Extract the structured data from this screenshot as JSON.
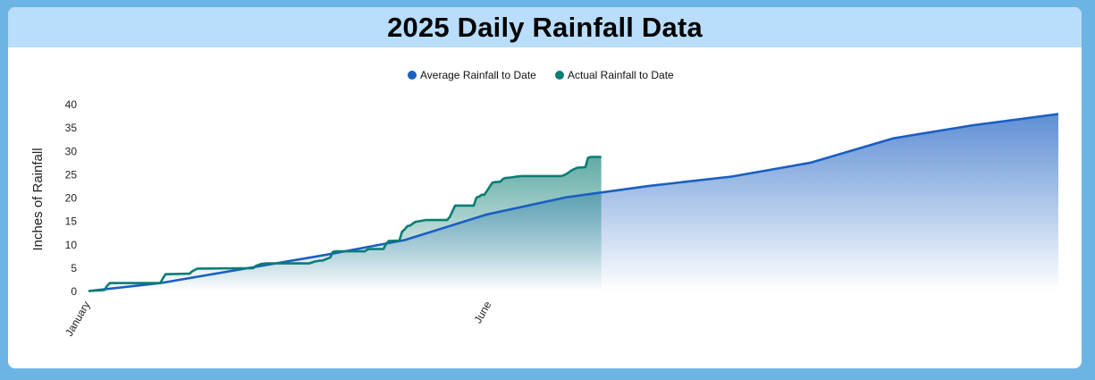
{
  "title": "2025 Daily Rainfall Data",
  "colors": {
    "average": "#1a5fc2",
    "actual": "#0b7d74",
    "header_bg": "#b9ddfb",
    "page_bg": "#6cb4e4"
  },
  "chart_data": {
    "type": "area",
    "ylabel": "Inches of Rainfall",
    "ylim": [
      0,
      40
    ],
    "yticks": [
      0,
      5,
      10,
      15,
      20,
      25,
      30,
      35,
      40
    ],
    "xlim": [
      1,
      366
    ],
    "xticks": [
      {
        "day": 1,
        "label": "January"
      },
      {
        "day": 152,
        "label": "June"
      }
    ],
    "legend_position": "top-center",
    "series": [
      {
        "name": "Average Rainfall to Date",
        "color": "#1a5fc2",
        "x": [
          1,
          28,
          59,
          90,
          120,
          151,
          181,
          212,
          243,
          273,
          304,
          334,
          366
        ],
        "y": [
          0.1,
          1.8,
          4.8,
          7.8,
          11.0,
          16.5,
          20.2,
          22.6,
          24.6,
          27.6,
          32.8,
          35.6,
          38.0
        ]
      },
      {
        "name": "Actual Rainfall to Date",
        "color": "#0b7d74",
        "x": [
          1,
          7,
          8,
          9,
          28,
          29,
          30,
          39,
          40,
          42,
          63,
          64,
          66,
          68,
          70,
          72,
          84,
          86,
          88,
          89,
          92,
          93,
          94,
          96,
          105,
          106,
          107,
          112,
          113,
          114,
          118,
          119,
          120,
          121,
          122,
          124,
          127,
          128,
          136,
          137,
          138,
          139,
          146,
          147,
          148,
          149,
          150,
          153,
          154,
          156,
          157,
          158,
          160,
          162,
          164,
          166,
          172,
          179,
          180,
          181,
          183,
          185,
          188,
          189,
          190,
          194
        ],
        "y": [
          0.1,
          0.3,
          1.2,
          1.8,
          1.8,
          2.8,
          3.7,
          3.8,
          4.3,
          4.9,
          5.0,
          5.5,
          5.9,
          6.0,
          6.0,
          6.0,
          6.0,
          6.4,
          6.6,
          6.6,
          7.3,
          8.5,
          8.6,
          8.6,
          8.6,
          9.0,
          9.1,
          9.1,
          10.2,
          10.8,
          10.9,
          12.8,
          13.3,
          14.0,
          14.1,
          14.9,
          15.2,
          15.3,
          15.3,
          16.0,
          17.2,
          18.4,
          18.4,
          20.1,
          20.3,
          20.7,
          20.7,
          23.3,
          23.4,
          23.5,
          24.1,
          24.3,
          24.4,
          24.6,
          24.7,
          24.7,
          24.7,
          24.7,
          24.9,
          25.2,
          26.0,
          26.5,
          26.6,
          28.6,
          28.8,
          28.8
        ]
      }
    ]
  }
}
